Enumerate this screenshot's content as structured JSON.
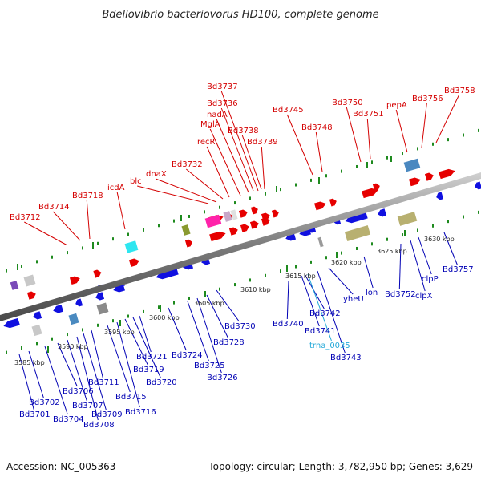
{
  "title": "Bdellovibrio bacteriovorus HD100, complete genome",
  "footer": {
    "accession": "Accession: NC_005363",
    "summary": "Topology: circular; Length: 3,782,950 bp; Genes: 3,629"
  },
  "scale_labels": [
    "3585 kbp",
    "3590 kbp",
    "3595 kbp",
    "3600 kbp",
    "3605 kbp",
    "3610 kbp",
    "3615 kbp",
    "3620 kbp",
    "3625 kbp",
    "3630 kbp"
  ],
  "top_labels": [
    "Bd3712",
    "Bd3714",
    "Bd3718",
    "icdA",
    "blc",
    "dnaX",
    "Bd3732",
    "recR",
    "MglA",
    "nadA",
    "Bd3736",
    "Bd3737",
    "Bd3738",
    "Bd3739",
    "Bd3745",
    "Bd3748",
    "Bd3750",
    "Bd3751",
    "pepA",
    "Bd3756",
    "Bd3758"
  ],
  "bottom_labels": [
    "Bd3701",
    "Bd3702",
    "Bd3704",
    "Bd3706",
    "Bd3707",
    "Bd3708",
    "Bd3709",
    "Bd3711",
    "Bd3715",
    "Bd3716",
    "Bd3719",
    "Bd3720",
    "Bd3721",
    "Bd3724",
    "Bd3725",
    "Bd3726",
    "Bd3728",
    "Bd3730",
    "Bd3740",
    "Bd3741",
    "Bd3742",
    "Bd3743",
    "yheU",
    "lon",
    "Bd3752",
    "clpX",
    "clpP",
    "Bd3757"
  ],
  "rna_labels": [
    "trna_0035"
  ],
  "colors": {
    "top_label": "#d40000",
    "bottom_label": "#0000b4",
    "rna_label": "#22a8d8",
    "forward_gene": "#e60000",
    "reverse_gene": "#1010e0",
    "backbone": "#8c8c8c",
    "tick": "#1e8a1e"
  }
}
